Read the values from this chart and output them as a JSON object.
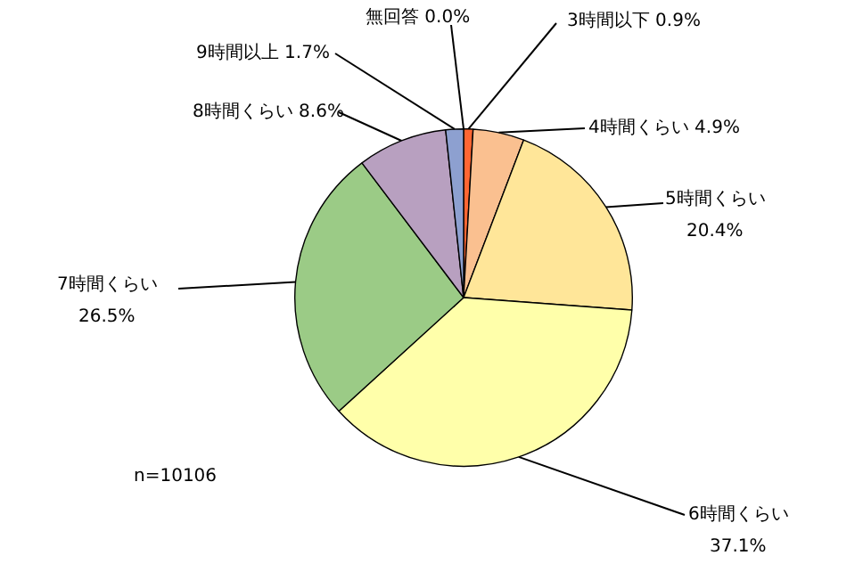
{
  "chart_data": {
    "type": "pie",
    "categories": [
      "無回答",
      "3時間以下",
      "4時間くらい",
      "5時間くらい",
      "6時間くらい",
      "7時間くらい",
      "8時間くらい",
      "9時間以上"
    ],
    "values": [
      0.0,
      0.9,
      4.9,
      20.4,
      37.1,
      26.5,
      8.6,
      1.7
    ],
    "value_labels": [
      "0.0%",
      "0.9%",
      "4.9%",
      "20.4%",
      "37.1%",
      "26.5%",
      "8.6%",
      "1.7%"
    ],
    "colors": [
      "#ffffff",
      "#ff6633",
      "#fac090",
      "#ffe699",
      "#ffffaa",
      "#9bcb86",
      "#b8a0c0",
      "#8da0d0"
    ],
    "annotations": [
      "n=10106"
    ],
    "legend": false
  }
}
